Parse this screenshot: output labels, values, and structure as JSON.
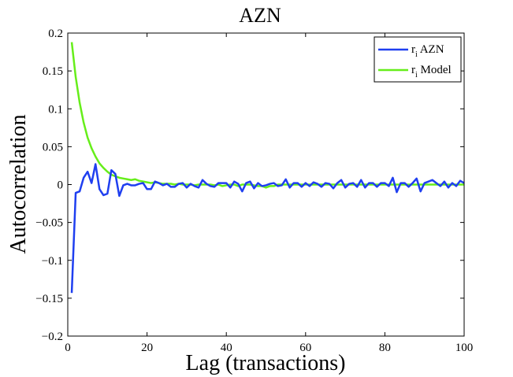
{
  "chart_data": {
    "type": "line",
    "title": "AZN",
    "xlabel": "Lag (transactions)",
    "ylabel": "Autocorrelation",
    "xlim": [
      0,
      100
    ],
    "ylim": [
      -0.2,
      0.2
    ],
    "xticks": [
      0,
      20,
      40,
      60,
      80,
      100
    ],
    "yticks": [
      -0.2,
      -0.15,
      -0.1,
      -0.05,
      0,
      0.05,
      0.1,
      0.15,
      0.2
    ],
    "xtick_labels": [
      "0",
      "20",
      "40",
      "60",
      "80",
      "100"
    ],
    "ytick_labels": [
      "−0.2",
      "−0.15",
      "−0.1",
      "−0.05",
      "0",
      "0.05",
      "0.1",
      "0.15",
      "0.2"
    ],
    "legend_position": "top-right",
    "grid": false,
    "series": [
      {
        "name": "r",
        "name_subscript": "i",
        "name_suffix": " AZN",
        "color": "#1f3ff0",
        "x": [
          1,
          2,
          3,
          4,
          5,
          6,
          7,
          8,
          9,
          10,
          11,
          12,
          13,
          14,
          15,
          16,
          17,
          18,
          19,
          20,
          21,
          22,
          23,
          24,
          25,
          26,
          27,
          28,
          29,
          30,
          31,
          32,
          33,
          34,
          35,
          36,
          37,
          38,
          39,
          40,
          41,
          42,
          43,
          44,
          45,
          46,
          47,
          48,
          49,
          50,
          51,
          52,
          53,
          54,
          55,
          56,
          57,
          58,
          59,
          60,
          61,
          62,
          63,
          64,
          65,
          66,
          67,
          68,
          69,
          70,
          71,
          72,
          73,
          74,
          75,
          76,
          77,
          78,
          79,
          80,
          81,
          82,
          83,
          84,
          85,
          86,
          87,
          88,
          89,
          90,
          91,
          92,
          93,
          94,
          95,
          96,
          97,
          98,
          99,
          100
        ],
        "y": [
          -0.143,
          -0.011,
          -0.009,
          0.009,
          0.017,
          0.002,
          0.027,
          -0.006,
          -0.014,
          -0.012,
          0.019,
          0.014,
          -0.015,
          -0.001,
          0.001,
          -0.001,
          -0.001,
          0.001,
          0.002,
          -0.006,
          -0.006,
          0.004,
          0.002,
          -0.001,
          0.001,
          -0.003,
          -0.003,
          0.001,
          0.002,
          -0.004,
          0.001,
          -0.002,
          -0.004,
          0.006,
          0.001,
          -0.002,
          -0.003,
          0.002,
          0.002,
          0.002,
          -0.004,
          0.004,
          0.001,
          -0.009,
          0.002,
          0.004,
          -0.005,
          0.002,
          -0.002,
          -0.001,
          0.001,
          0.002,
          -0.002,
          -0.001,
          0.007,
          -0.004,
          0.002,
          0.002,
          -0.003,
          0.002,
          -0.002,
          0.003,
          0.001,
          -0.003,
          0.002,
          0.001,
          -0.005,
          0.002,
          0.006,
          -0.004,
          0.001,
          0.002,
          -0.003,
          0.006,
          -0.004,
          0.002,
          0.002,
          -0.003,
          0.002,
          0.002,
          -0.002,
          0.009,
          -0.01,
          0.002,
          0.002,
          -0.003,
          0.002,
          0.008,
          -0.009,
          0.002,
          0.004,
          0.006,
          0.002,
          -0.002,
          0.004,
          -0.004,
          0.002,
          -0.002,
          0.005,
          0.002
        ]
      },
      {
        "name": "r",
        "name_subscript": "i",
        "name_suffix": " Model",
        "color": "#66ee1a",
        "x": [
          1,
          2,
          3,
          4,
          5,
          6,
          7,
          8,
          9,
          10,
          11,
          12,
          13,
          14,
          15,
          16,
          17,
          18,
          19,
          20,
          21,
          22,
          23,
          24,
          25,
          26,
          27,
          28,
          29,
          30,
          31,
          32,
          33,
          34,
          35,
          36,
          37,
          38,
          39,
          40,
          41,
          42,
          43,
          44,
          45,
          46,
          47,
          48,
          49,
          50,
          51,
          52,
          53,
          54,
          55,
          56,
          57,
          58,
          59,
          60,
          61,
          62,
          63,
          64,
          65,
          66,
          67,
          68,
          69,
          70,
          71,
          72,
          73,
          74,
          75,
          76,
          77,
          78,
          79,
          80,
          81,
          82,
          83,
          84,
          85,
          86,
          87,
          88,
          89,
          90,
          91,
          92,
          93,
          94,
          95,
          96,
          97,
          98,
          99,
          100
        ],
        "y": [
          0.188,
          0.142,
          0.108,
          0.082,
          0.062,
          0.048,
          0.037,
          0.028,
          0.022,
          0.017,
          0.013,
          0.011,
          0.009,
          0.008,
          0.007,
          0.006,
          0.007,
          0.005,
          0.004,
          0.003,
          0.002,
          0.003,
          0.002,
          0.001,
          0.001,
          0.001,
          0.0,
          0.001,
          0.0,
          0.0,
          0.0,
          -0.001,
          0.0,
          0.0,
          0.0,
          0.0,
          -0.001,
          0.0,
          -0.002,
          -0.001,
          0.0,
          0.0,
          -0.002,
          0.0,
          0.0,
          0.0,
          -0.001,
          -0.002,
          -0.002,
          -0.004,
          -0.002,
          -0.002,
          0.0,
          0.0,
          0.0,
          0.0,
          0.0,
          0.0,
          0.0,
          0.0,
          0.0,
          0.0,
          0.0,
          0.0,
          0.0,
          0.0,
          0.0,
          0.0,
          0.0,
          0.0,
          0.0,
          0.0,
          0.0,
          0.0,
          0.0,
          0.0,
          0.0,
          0.0,
          0.0,
          0.0,
          0.0,
          0.0,
          0.0,
          0.0,
          0.0,
          0.0,
          0.0,
          0.0,
          0.0,
          0.0,
          0.0,
          0.0,
          0.0,
          0.0,
          0.0,
          0.0,
          0.0,
          0.0,
          0.0,
          0.0
        ]
      }
    ]
  }
}
